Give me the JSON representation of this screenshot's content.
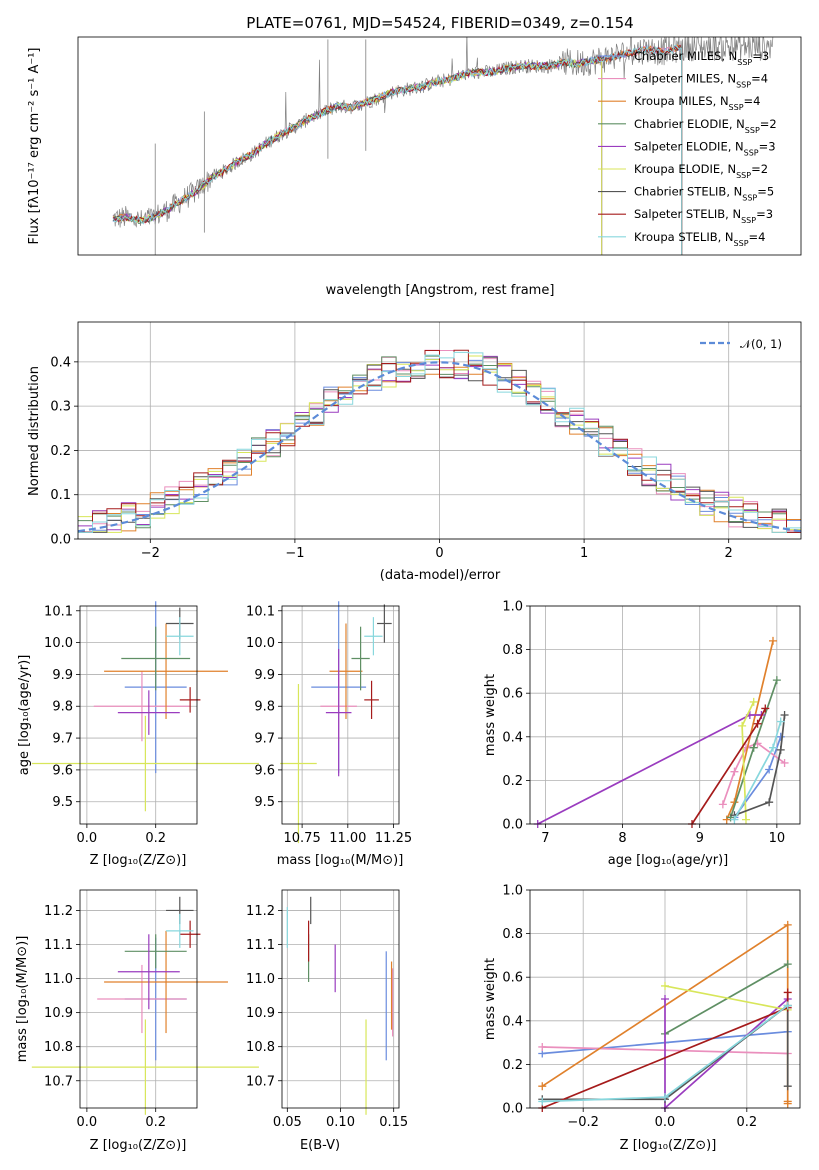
{
  "colors": {
    "c1": "#6a8cde",
    "c2": "#ea8fbd",
    "c3": "#e0812c",
    "c4": "#5f8f64",
    "c5": "#9a3cbf",
    "c6": "#d8e65a",
    "c7": "#555555",
    "c8": "#a51b1b",
    "c9": "#88d7dd",
    "data": "#808080",
    "normal": "#5c8bd8",
    "grid": "#b0b0b0"
  },
  "chart_data": [
    {
      "id": "spectrum",
      "type": "line",
      "title": "PLATE=0761, MJD=54524, FIBERID=0349, z=0.154",
      "xlabel": "wavelength [Angstrom, rest frame]",
      "ylabel": "Flux [fλ10⁻¹⁷ erg cm⁻² s⁻¹ A⁻¹]",
      "xlim": [
        3050,
        8200
      ],
      "ylim": [
        0,
        18
      ],
      "xticks": [
        4000,
        5000,
        6000,
        7000,
        8000
      ],
      "yticks": [
        0,
        5,
        10,
        15
      ],
      "grid": false,
      "legend": "top-right",
      "continuum": {
        "x": [
          3300,
          3400,
          3500,
          3600,
          3700,
          3800,
          3900,
          4000,
          4100,
          4200,
          4300,
          4400,
          4500,
          4600,
          4700,
          4800,
          4900,
          5000,
          5100,
          5200,
          5300,
          5400,
          5500,
          5600,
          5700,
          5800,
          5900,
          6000,
          6100,
          6200,
          6300,
          6400,
          6500,
          6600,
          6700,
          6800,
          6900,
          7000,
          7100,
          7200,
          7300,
          7400
        ],
        "y": [
          3.0,
          3.1,
          2.8,
          3.2,
          3.8,
          4.6,
          5.3,
          6.4,
          7.0,
          7.8,
          8.4,
          9.3,
          10.0,
          10.6,
          11.3,
          11.8,
          12.3,
          12.2,
          12.6,
          13.0,
          13.5,
          13.7,
          13.9,
          14.3,
          14.5,
          14.9,
          15.1,
          15.1,
          15.4,
          15.6,
          15.6,
          15.6,
          15.9,
          15.8,
          16.0,
          16.2,
          16.5,
          16.7,
          17.0,
          16.8,
          17.0,
          17.2
        ]
      },
      "series": [
        {
          "name": "Chabrier MILES, N_SSP=3",
          "color": "c1",
          "end": 7350
        },
        {
          "name": "Salpeter MILES, N_SSP=4",
          "color": "c2",
          "end": 7350
        },
        {
          "name": "Kroupa MILES, N_SSP=4",
          "color": "c3",
          "end": 7350
        },
        {
          "name": "Chabrier ELODIE, N_SSP=2",
          "color": "c4",
          "end": 6780
        },
        {
          "name": "Salpeter ELODIE, N_SSP=3",
          "color": "c5",
          "end": 6780
        },
        {
          "name": "Kroupa ELODIE, N_SSP=2",
          "color": "c6",
          "end": 6780
        },
        {
          "name": "Chabrier STELIB, N_SSP=5",
          "color": "c7",
          "end": 7350
        },
        {
          "name": "Salpeter STELIB, N_SSP=3",
          "color": "c8",
          "end": 7350
        },
        {
          "name": "Kroupa STELIB, N_SSP=4",
          "color": "c9",
          "end": 7350
        }
      ]
    },
    {
      "id": "residuals",
      "type": "line",
      "xlabel": "(data-model)/error",
      "ylabel": "Normed distribution",
      "xlim": [
        -2.5,
        2.5
      ],
      "ylim": [
        0,
        0.49
      ],
      "xticks": [
        -2,
        -1,
        0,
        1,
        2
      ],
      "yticks": [
        0.0,
        0.1,
        0.2,
        0.3,
        0.4
      ],
      "grid": true,
      "legend": "top-right",
      "normal_label": "𝒩(0, 1)",
      "bin_width": 0.1
    },
    {
      "id": "age-vs-Z",
      "type": "scatter",
      "xlabel": "Z [log₁₀(Z/Z⊙)]",
      "ylabel": "age  [log₁₀(age/yr)]",
      "xlim": [
        -0.02,
        0.32
      ],
      "ylim": [
        9.43,
        10.115
      ],
      "xticks": [
        0.0,
        0.2
      ],
      "yticks": [
        9.5,
        9.6,
        9.7,
        9.8,
        9.9,
        10.0,
        10.1
      ],
      "grid": true,
      "points": [
        {
          "c": "c1",
          "x": 0.2,
          "xerr": 0.09,
          "y": 9.86,
          "yerr": 0.27
        },
        {
          "c": "c2",
          "x": 0.16,
          "xerr": 0.14,
          "y": 9.8,
          "yerr": 0.11
        },
        {
          "c": "c3",
          "x": 0.23,
          "xerr": 0.18,
          "y": 9.91,
          "yerr": 0.15
        },
        {
          "c": "c4",
          "x": 0.2,
          "xerr": 0.1,
          "y": 9.95,
          "yerr": 0.1
        },
        {
          "c": "c5",
          "x": 0.18,
          "xerr": 0.09,
          "y": 9.78,
          "yerr": 0.07
        },
        {
          "c": "c6",
          "x": 0.17,
          "xerr": 0.33,
          "y": 9.62,
          "yerr": 0.15
        },
        {
          "c": "c7",
          "x": 0.27,
          "xerr": 0.04,
          "y": 10.06,
          "yerr": 0.05
        },
        {
          "c": "c8",
          "x": 0.3,
          "xerr": 0.03,
          "y": 9.82,
          "yerr": 0.04
        },
        {
          "c": "c9",
          "x": 0.27,
          "xerr": 0.04,
          "y": 10.02,
          "yerr": 0.06
        }
      ]
    },
    {
      "id": "age-vs-mass",
      "type": "scatter",
      "xlabel": "mass [log₁₀(M/M⊙)]",
      "xlim": [
        10.64,
        11.28
      ],
      "ylim": [
        9.43,
        10.115
      ],
      "xticks": [
        10.75,
        11.0,
        11.25
      ],
      "yticks": [
        9.5,
        9.6,
        9.7,
        9.8,
        9.9,
        10.0,
        10.1
      ],
      "grid": true,
      "points": [
        {
          "c": "c1",
          "x": 10.95,
          "xerr": 0.15,
          "y": 9.86,
          "yerr": 0.27
        },
        {
          "c": "c2",
          "x": 10.95,
          "xerr": 0.1,
          "y": 9.8,
          "yerr": 0.11
        },
        {
          "c": "c3",
          "x": 10.99,
          "xerr": 0.09,
          "y": 9.91,
          "yerr": 0.15
        },
        {
          "c": "c4",
          "x": 11.07,
          "xerr": 0.05,
          "y": 9.95,
          "yerr": 0.1
        },
        {
          "c": "c5",
          "x": 10.95,
          "xerr": 0.07,
          "y": 9.78,
          "yerr": 0.2
        },
        {
          "c": "c6",
          "x": 10.73,
          "xerr": 0.1,
          "y": 9.62,
          "yerr": 0.25
        },
        {
          "c": "c7",
          "x": 11.2,
          "xerr": 0.04,
          "y": 10.06,
          "yerr": 0.06
        },
        {
          "c": "c8",
          "x": 11.13,
          "xerr": 0.04,
          "y": 9.82,
          "yerr": 0.06
        },
        {
          "c": "c9",
          "x": 11.14,
          "xerr": 0.05,
          "y": 10.02,
          "yerr": 0.06
        }
      ]
    },
    {
      "id": "weight-vs-age",
      "type": "line",
      "xlabel": "age  [log₁₀(age/yr)]",
      "ylabel": "mass weight",
      "xlim": [
        6.8,
        10.3
      ],
      "ylim": [
        0,
        1.0
      ],
      "xticks": [
        7,
        8,
        9,
        10
      ],
      "yticks": [
        0.0,
        0.2,
        0.4,
        0.6,
        0.8,
        1.0
      ],
      "grid": true,
      "series": [
        {
          "c": "c1",
          "x": [
            9.45,
            9.9,
            10.05
          ],
          "y": [
            0.03,
            0.25,
            0.4
          ]
        },
        {
          "c": "c2",
          "x": [
            9.3,
            9.45,
            9.6,
            9.75,
            10.1
          ],
          "y": [
            0.09,
            0.24,
            0.35,
            0.37,
            0.28
          ]
        },
        {
          "c": "c3",
          "x": [
            9.35,
            9.45,
            9.95
          ],
          "y": [
            0.02,
            0.1,
            0.84
          ]
        },
        {
          "c": "c4",
          "x": [
            9.4,
            9.7,
            10.0
          ],
          "y": [
            0.03,
            0.35,
            0.66
          ]
        },
        {
          "c": "c5",
          "x": [
            6.9,
            9.65,
            9.8
          ],
          "y": [
            0.0,
            0.5,
            0.5
          ]
        },
        {
          "c": "c6",
          "x": [
            9.6,
            9.55,
            9.7
          ],
          "y": [
            0.02,
            0.45,
            0.56
          ]
        },
        {
          "c": "c7",
          "x": [
            9.45,
            9.9,
            10.05,
            10.1
          ],
          "y": [
            0.04,
            0.1,
            0.34,
            0.5
          ]
        },
        {
          "c": "c8",
          "x": [
            8.9,
            9.75,
            9.85
          ],
          "y": [
            0.0,
            0.46,
            0.53
          ]
        },
        {
          "c": "c9",
          "x": [
            9.45,
            9.95,
            10.05
          ],
          "y": [
            0.02,
            0.35,
            0.47
          ]
        }
      ]
    },
    {
      "id": "mass-vs-Z",
      "type": "scatter",
      "xlabel": "Z [log₁₀(Z/Z⊙)]",
      "ylabel": "mass [log₁₀(M/M⊙)]",
      "xlim": [
        -0.02,
        0.32
      ],
      "ylim": [
        10.62,
        11.26
      ],
      "xticks": [
        0.0,
        0.2
      ],
      "yticks": [
        10.7,
        10.8,
        10.9,
        11.0,
        11.1,
        11.2
      ],
      "grid": true,
      "points": [
        {
          "c": "c1",
          "x": 0.2,
          "xerr": 0.09,
          "y": 10.94,
          "yerr": 0.18
        },
        {
          "c": "c2",
          "x": 0.16,
          "xerr": 0.13,
          "y": 10.94,
          "yerr": 0.1
        },
        {
          "c": "c3",
          "x": 0.23,
          "xerr": 0.18,
          "y": 10.99,
          "yerr": 0.15
        },
        {
          "c": "c4",
          "x": 0.2,
          "xerr": 0.09,
          "y": 11.08,
          "yerr": 0.05
        },
        {
          "c": "c5",
          "x": 0.18,
          "xerr": 0.09,
          "y": 11.02,
          "yerr": 0.11
        },
        {
          "c": "c6",
          "x": 0.17,
          "xerr": 0.33,
          "y": 10.74,
          "yerr": 0.14
        },
        {
          "c": "c7",
          "x": 0.27,
          "xerr": 0.04,
          "y": 11.2,
          "yerr": 0.04
        },
        {
          "c": "c8",
          "x": 0.3,
          "xerr": 0.03,
          "y": 11.13,
          "yerr": 0.04
        },
        {
          "c": "c9",
          "x": 0.27,
          "xerr": 0.04,
          "y": 11.14,
          "yerr": 0.05
        }
      ]
    },
    {
      "id": "mass-vs-EBV",
      "type": "scatter",
      "xlabel": "E(B-V)",
      "xlim": [
        0.045,
        0.155
      ],
      "ylim": [
        10.62,
        11.26
      ],
      "xticks": [
        0.05,
        0.1,
        0.15
      ],
      "yticks": [
        10.7,
        10.8,
        10.9,
        11.0,
        11.1,
        11.2
      ],
      "grid": true,
      "points": [
        {
          "c": "c1",
          "x": 0.143,
          "y": 10.92,
          "yerr": 0.16
        },
        {
          "c": "c2",
          "x": 0.149,
          "y": 10.93,
          "yerr": 0.1
        },
        {
          "c": "c3",
          "x": 0.148,
          "y": 10.95,
          "yerr": 0.1
        },
        {
          "c": "c4",
          "x": 0.07,
          "y": 11.06,
          "yerr": 0.07
        },
        {
          "c": "c5",
          "x": 0.095,
          "y": 11.03,
          "yerr": 0.07
        },
        {
          "c": "c6",
          "x": 0.124,
          "y": 10.74,
          "yerr": 0.14
        },
        {
          "c": "c7",
          "x": 0.072,
          "y": 11.2,
          "yerr": 0.04
        },
        {
          "c": "c8",
          "x": 0.07,
          "y": 11.11,
          "yerr": 0.06
        },
        {
          "c": "c9",
          "x": 0.05,
          "y": 11.15,
          "yerr": 0.06
        }
      ]
    },
    {
      "id": "weight-vs-Z",
      "type": "line",
      "xlabel": "Z [log₁₀(Z/Z⊙)]",
      "ylabel": "mass weight",
      "xlim": [
        -0.33,
        0.33
      ],
      "ylim": [
        0,
        1.0
      ],
      "xticks": [
        -0.2,
        0.0,
        0.2
      ],
      "yticks": [
        0.0,
        0.2,
        0.4,
        0.6,
        0.8,
        1.0
      ],
      "grid": true,
      "series": [
        {
          "c": "c1",
          "x": [
            -0.3,
            0.0,
            0.3
          ],
          "y": [
            0.25,
            0.3,
            0.35
          ]
        },
        {
          "c": "c2",
          "x": [
            -0.3,
            0.3
          ],
          "y": [
            0.28,
            0.25
          ]
        },
        {
          "c": "c3",
          "x": [
            -0.3,
            0.3,
            0.3,
            0.3
          ],
          "y": [
            0.1,
            0.84,
            0.03,
            0.02
          ]
        },
        {
          "c": "c4",
          "x": [
            0.0,
            0.3
          ],
          "y": [
            0.34,
            0.66
          ]
        },
        {
          "c": "c5",
          "x": [
            0.0,
            0.0,
            0.3
          ],
          "y": [
            0.5,
            0.0,
            0.5
          ]
        },
        {
          "c": "c6",
          "x": [
            0.0,
            0.3
          ],
          "y": [
            0.56,
            0.45
          ]
        },
        {
          "c": "c7",
          "x": [
            -0.3,
            0.0,
            0.3,
            0.3
          ],
          "y": [
            0.04,
            0.04,
            0.47,
            0.1
          ]
        },
        {
          "c": "c8",
          "x": [
            -0.3,
            0.3,
            0.3
          ],
          "y": [
            0.0,
            0.46,
            0.53
          ]
        },
        {
          "c": "c9",
          "x": [
            -0.3,
            0.0,
            0.3
          ],
          "y": [
            0.03,
            0.05,
            0.47
          ]
        }
      ]
    }
  ]
}
